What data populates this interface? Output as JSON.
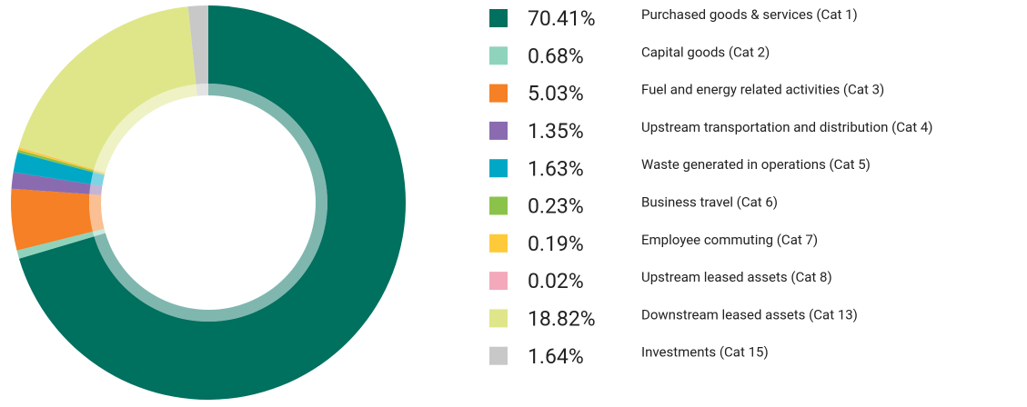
{
  "chart_data": {
    "type": "donut",
    "categories": [
      "Purchased goods & services (Cat 1)",
      "Capital goods (Cat 2)",
      "Fuel and energy related activities (Cat 3)",
      "Upstream transportation and distribution (Cat 4)",
      "Waste generated in operations (Cat 5)",
      "Business travel (Cat 6)",
      "Employee commuting (Cat 7)",
      "Upstream leased assets (Cat 8)",
      "Downstream leased assets (Cat 13)",
      "Investments (Cat 15)"
    ],
    "values": [
      70.41,
      0.68,
      5.03,
      1.35,
      1.63,
      0.23,
      0.19,
      0.02,
      18.82,
      1.64
    ],
    "value_labels": [
      "70.41%",
      "0.68%",
      "5.03%",
      "1.35%",
      "1.63%",
      "0.23%",
      "0.19%",
      "0.02%",
      "18.82%",
      "1.64%"
    ],
    "colors": [
      "#00705f",
      "#8fd3bd",
      "#f58025",
      "#8a6bb0",
      "#00a8c6",
      "#8bc34a",
      "#ffca3a",
      "#f4a9bb",
      "#dfe68a",
      "#c8c8c8"
    ]
  }
}
